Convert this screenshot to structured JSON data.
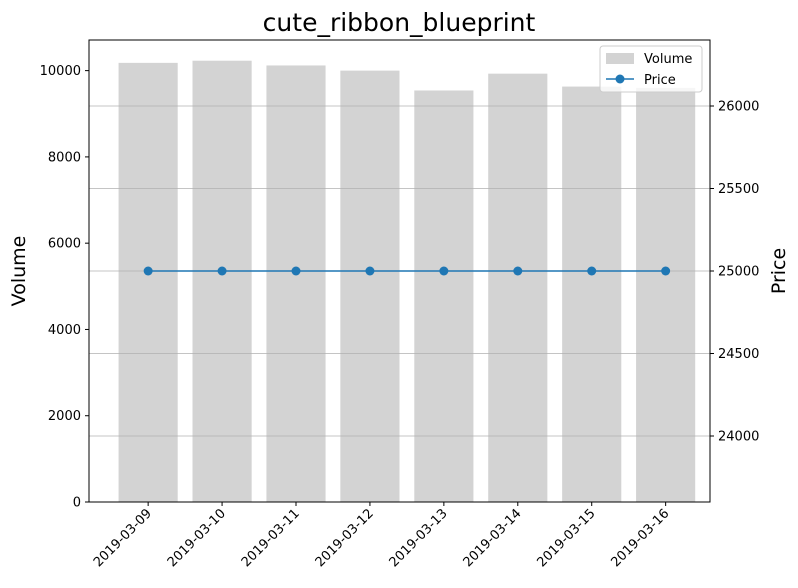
{
  "chart_data": {
    "type": "bar+line",
    "title": "cute_ribbon_blueprint",
    "categories": [
      "2019-03-09",
      "2019-03-10",
      "2019-03-11",
      "2019-03-12",
      "2019-03-13",
      "2019-03-14",
      "2019-03-15",
      "2019-03-16"
    ],
    "series": [
      {
        "name": "Volume",
        "type": "bar",
        "axis": "left",
        "color": "#d3d3d3",
        "values": [
          10180,
          10230,
          10120,
          10000,
          9540,
          9930,
          9630,
          9600
        ]
      },
      {
        "name": "Price",
        "type": "line",
        "axis": "right",
        "color": "#1f77b4",
        "values": [
          25000,
          25000,
          25000,
          25000,
          25000,
          25000,
          25000,
          25000
        ]
      }
    ],
    "ylabel": "Volume",
    "y2label": "Price",
    "ylim": [
      0,
      10710
    ],
    "y2lim": [
      23600,
      26400
    ],
    "yticks": [
      0,
      2000,
      4000,
      6000,
      8000,
      10000
    ],
    "y2ticks": [
      24000,
      24500,
      25000,
      25500,
      26000
    ],
    "grid": "horizontal on price axis",
    "legend_placement": "top-right"
  }
}
